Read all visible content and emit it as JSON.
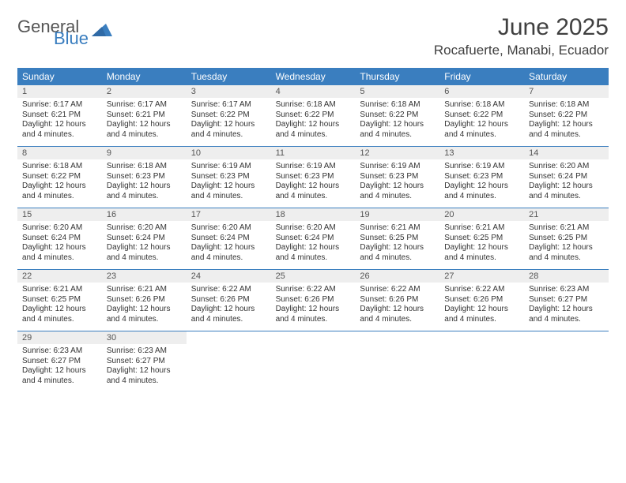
{
  "logo": {
    "main": "General",
    "sub": "Blue"
  },
  "title": "June 2025",
  "location": "Rocafuerte, Manabi, Ecuador",
  "colors": {
    "header_bg": "#3a7ebf",
    "header_fg": "#ffffff",
    "daynum_bg": "#eeeeee",
    "text": "#333333",
    "logo_main": "#555555",
    "logo_sub": "#3a7ebf",
    "week_border": "#3a7ebf"
  },
  "daysOfWeek": [
    "Sunday",
    "Monday",
    "Tuesday",
    "Wednesday",
    "Thursday",
    "Friday",
    "Saturday"
  ],
  "weeks": [
    [
      {
        "n": "1",
        "sunrise": "6:17 AM",
        "sunset": "6:21 PM",
        "daylight": "12 hours and 4 minutes."
      },
      {
        "n": "2",
        "sunrise": "6:17 AM",
        "sunset": "6:21 PM",
        "daylight": "12 hours and 4 minutes."
      },
      {
        "n": "3",
        "sunrise": "6:17 AM",
        "sunset": "6:22 PM",
        "daylight": "12 hours and 4 minutes."
      },
      {
        "n": "4",
        "sunrise": "6:18 AM",
        "sunset": "6:22 PM",
        "daylight": "12 hours and 4 minutes."
      },
      {
        "n": "5",
        "sunrise": "6:18 AM",
        "sunset": "6:22 PM",
        "daylight": "12 hours and 4 minutes."
      },
      {
        "n": "6",
        "sunrise": "6:18 AM",
        "sunset": "6:22 PM",
        "daylight": "12 hours and 4 minutes."
      },
      {
        "n": "7",
        "sunrise": "6:18 AM",
        "sunset": "6:22 PM",
        "daylight": "12 hours and 4 minutes."
      }
    ],
    [
      {
        "n": "8",
        "sunrise": "6:18 AM",
        "sunset": "6:22 PM",
        "daylight": "12 hours and 4 minutes."
      },
      {
        "n": "9",
        "sunrise": "6:18 AM",
        "sunset": "6:23 PM",
        "daylight": "12 hours and 4 minutes."
      },
      {
        "n": "10",
        "sunrise": "6:19 AM",
        "sunset": "6:23 PM",
        "daylight": "12 hours and 4 minutes."
      },
      {
        "n": "11",
        "sunrise": "6:19 AM",
        "sunset": "6:23 PM",
        "daylight": "12 hours and 4 minutes."
      },
      {
        "n": "12",
        "sunrise": "6:19 AM",
        "sunset": "6:23 PM",
        "daylight": "12 hours and 4 minutes."
      },
      {
        "n": "13",
        "sunrise": "6:19 AM",
        "sunset": "6:23 PM",
        "daylight": "12 hours and 4 minutes."
      },
      {
        "n": "14",
        "sunrise": "6:20 AM",
        "sunset": "6:24 PM",
        "daylight": "12 hours and 4 minutes."
      }
    ],
    [
      {
        "n": "15",
        "sunrise": "6:20 AM",
        "sunset": "6:24 PM",
        "daylight": "12 hours and 4 minutes."
      },
      {
        "n": "16",
        "sunrise": "6:20 AM",
        "sunset": "6:24 PM",
        "daylight": "12 hours and 4 minutes."
      },
      {
        "n": "17",
        "sunrise": "6:20 AM",
        "sunset": "6:24 PM",
        "daylight": "12 hours and 4 minutes."
      },
      {
        "n": "18",
        "sunrise": "6:20 AM",
        "sunset": "6:24 PM",
        "daylight": "12 hours and 4 minutes."
      },
      {
        "n": "19",
        "sunrise": "6:21 AM",
        "sunset": "6:25 PM",
        "daylight": "12 hours and 4 minutes."
      },
      {
        "n": "20",
        "sunrise": "6:21 AM",
        "sunset": "6:25 PM",
        "daylight": "12 hours and 4 minutes."
      },
      {
        "n": "21",
        "sunrise": "6:21 AM",
        "sunset": "6:25 PM",
        "daylight": "12 hours and 4 minutes."
      }
    ],
    [
      {
        "n": "22",
        "sunrise": "6:21 AM",
        "sunset": "6:25 PM",
        "daylight": "12 hours and 4 minutes."
      },
      {
        "n": "23",
        "sunrise": "6:21 AM",
        "sunset": "6:26 PM",
        "daylight": "12 hours and 4 minutes."
      },
      {
        "n": "24",
        "sunrise": "6:22 AM",
        "sunset": "6:26 PM",
        "daylight": "12 hours and 4 minutes."
      },
      {
        "n": "25",
        "sunrise": "6:22 AM",
        "sunset": "6:26 PM",
        "daylight": "12 hours and 4 minutes."
      },
      {
        "n": "26",
        "sunrise": "6:22 AM",
        "sunset": "6:26 PM",
        "daylight": "12 hours and 4 minutes."
      },
      {
        "n": "27",
        "sunrise": "6:22 AM",
        "sunset": "6:26 PM",
        "daylight": "12 hours and 4 minutes."
      },
      {
        "n": "28",
        "sunrise": "6:23 AM",
        "sunset": "6:27 PM",
        "daylight": "12 hours and 4 minutes."
      }
    ],
    [
      {
        "n": "29",
        "sunrise": "6:23 AM",
        "sunset": "6:27 PM",
        "daylight": "12 hours and 4 minutes."
      },
      {
        "n": "30",
        "sunrise": "6:23 AM",
        "sunset": "6:27 PM",
        "daylight": "12 hours and 4 minutes."
      },
      null,
      null,
      null,
      null,
      null
    ]
  ],
  "labels": {
    "sunrise": "Sunrise:",
    "sunset": "Sunset:",
    "daylight": "Daylight:"
  }
}
